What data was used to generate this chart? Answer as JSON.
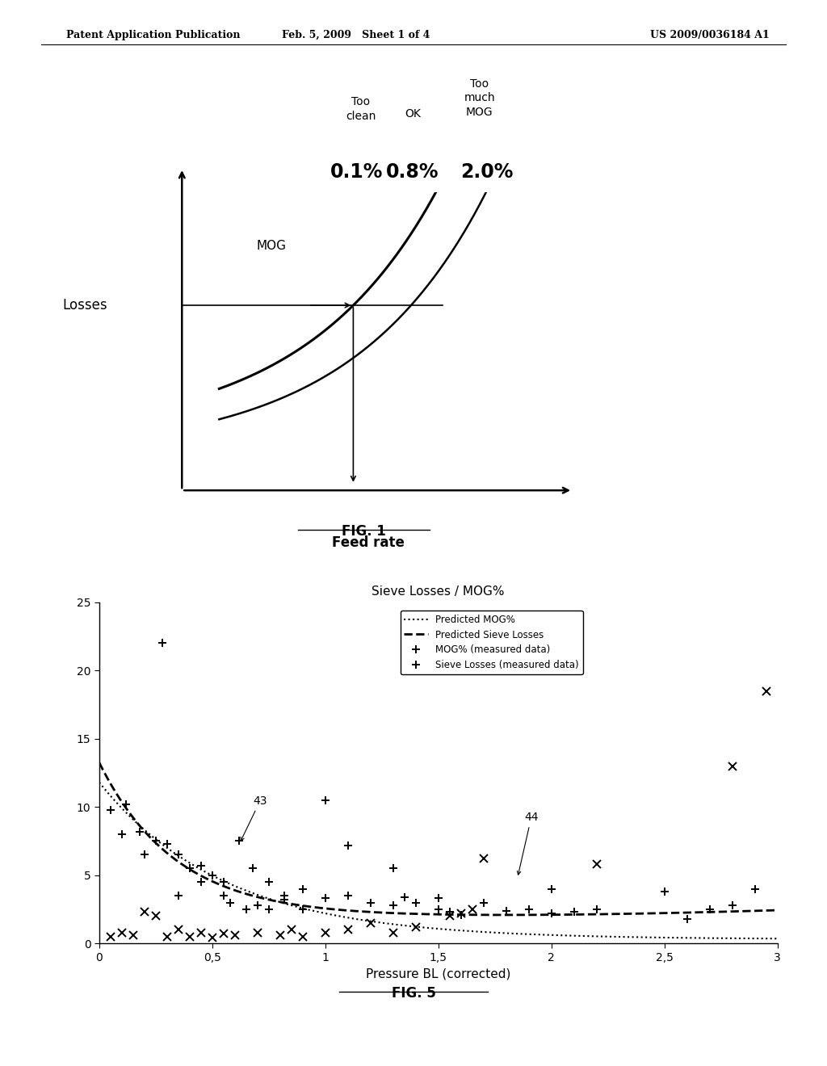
{
  "header_left": "Patent Application Publication",
  "header_mid": "Feb. 5, 2009   Sheet 1 of 4",
  "header_right": "US 2009/0036184 A1",
  "fig1": {
    "xlabel": "Feed rate",
    "ylabel": "Losses",
    "mog_label": "MOG",
    "too_clean_label": "Too\nclean",
    "ok_label": "OK",
    "too_much_mog_label": "Too\nmuch\nMOG",
    "pct_01": "0.1%",
    "pct_08": "0.8%",
    "pct_20": "2.0%",
    "fig_label": "FIG. 1"
  },
  "fig5": {
    "title": "Sieve Losses / MOG%",
    "xlabel": "Pressure BL (corrected)",
    "xlim": [
      0,
      3
    ],
    "ylim": [
      0,
      25
    ],
    "xticks": [
      0,
      0.5,
      1,
      1.5,
      2,
      2.5,
      3
    ],
    "xtick_labels": [
      "0",
      "0,5",
      "1",
      "1,5",
      "2",
      "2,5",
      "3"
    ],
    "yticks": [
      0,
      5,
      10,
      15,
      20,
      25
    ],
    "legend_dotted": "Predicted MOG%",
    "legend_dashed": "Predicted Sieve Losses",
    "legend_plus": "MOG% (measured data)",
    "legend_cross": "Sieve Losses (measured data)",
    "label_43": "43",
    "label_44": "44",
    "fig_label": "FIG. 5"
  }
}
